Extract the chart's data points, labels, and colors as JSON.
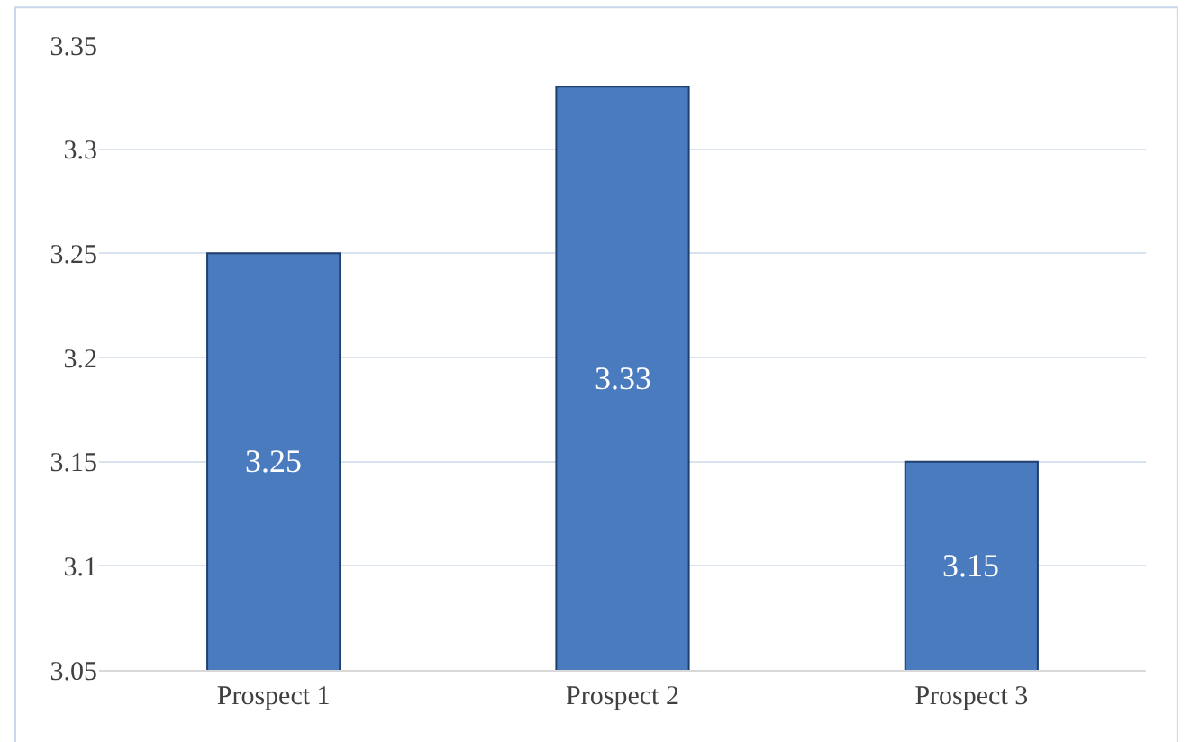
{
  "chart_data": {
    "type": "bar",
    "categories": [
      "Prospect 1",
      "Prospect 2",
      "Prospect 3"
    ],
    "values": [
      3.25,
      3.33,
      3.15
    ],
    "color": "#4a7bbf",
    "ylim": [
      3.05,
      3.35
    ],
    "yticks": [
      3.05,
      3.1,
      3.15,
      3.2,
      3.25,
      3.3,
      3.35
    ],
    "grid": "y",
    "data_labels": true,
    "legend": false
  }
}
